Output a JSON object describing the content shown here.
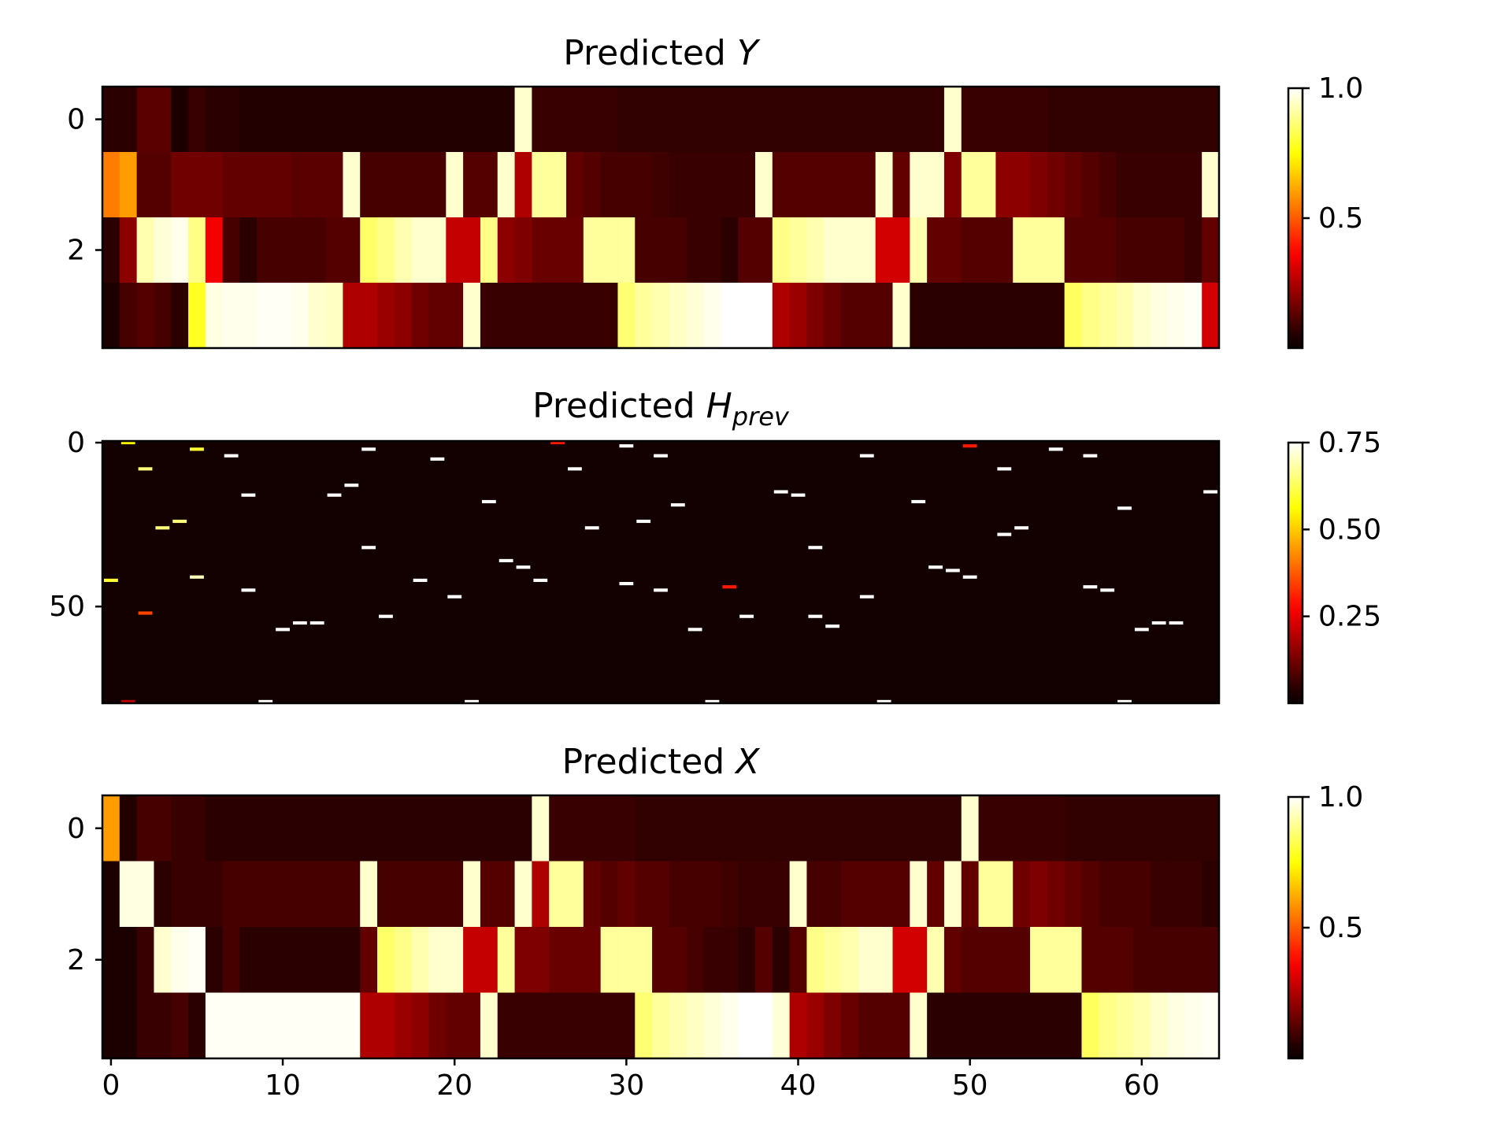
{
  "chart_data": [
    {
      "type": "heatmap",
      "title_main": "Predicted ",
      "title_var": "Y",
      "title_sub": "",
      "n_rows": 4,
      "n_cols": 65,
      "colormap": "hot",
      "vmax": 1.0,
      "yticks": [
        0,
        2
      ],
      "xticks": [],
      "colorbar_ticks": [
        "1.0",
        "0.5"
      ],
      "colorbar_tick_values": [
        1.0,
        0.5
      ],
      "rows": [
        [
          0.06,
          0.06,
          0.13,
          0.13,
          0.04,
          0.08,
          0.06,
          0.06,
          0.05,
          0.05,
          0.05,
          0.05,
          0.05,
          0.05,
          0.05,
          0.05,
          0.05,
          0.05,
          0.05,
          0.05,
          0.05,
          0.05,
          0.05,
          0.05,
          0.95,
          0.08,
          0.08,
          0.08,
          0.08,
          0.08,
          0.07,
          0.07,
          0.07,
          0.07,
          0.07,
          0.07,
          0.07,
          0.07,
          0.07,
          0.07,
          0.07,
          0.07,
          0.07,
          0.07,
          0.07,
          0.07,
          0.07,
          0.07,
          0.07,
          0.95,
          0.08,
          0.08,
          0.08,
          0.08,
          0.08,
          0.07,
          0.07,
          0.07,
          0.07,
          0.07,
          0.07,
          0.07,
          0.07,
          0.07,
          0.07
        ],
        [
          0.55,
          0.6,
          0.12,
          0.12,
          0.16,
          0.16,
          0.16,
          0.14,
          0.14,
          0.14,
          0.14,
          0.13,
          0.13,
          0.13,
          0.95,
          0.1,
          0.1,
          0.1,
          0.1,
          0.1,
          0.95,
          0.12,
          0.12,
          0.95,
          0.25,
          0.9,
          0.9,
          0.14,
          0.12,
          0.1,
          0.1,
          0.1,
          0.09,
          0.08,
          0.08,
          0.08,
          0.08,
          0.08,
          0.95,
          0.12,
          0.12,
          0.12,
          0.12,
          0.12,
          0.12,
          0.95,
          0.14,
          0.95,
          0.95,
          0.18,
          0.9,
          0.9,
          0.2,
          0.2,
          0.18,
          0.16,
          0.14,
          0.12,
          0.1,
          0.08,
          0.08,
          0.08,
          0.08,
          0.08,
          0.95
        ],
        [
          0.06,
          0.2,
          0.92,
          0.96,
          0.98,
          0.88,
          0.35,
          0.1,
          0.06,
          0.1,
          0.1,
          0.1,
          0.1,
          0.12,
          0.12,
          0.85,
          0.88,
          0.92,
          0.95,
          0.95,
          0.28,
          0.28,
          0.88,
          0.2,
          0.18,
          0.15,
          0.15,
          0.15,
          0.9,
          0.9,
          0.9,
          0.1,
          0.1,
          0.1,
          0.08,
          0.08,
          0.06,
          0.12,
          0.12,
          0.88,
          0.9,
          0.92,
          0.95,
          0.95,
          0.95,
          0.3,
          0.3,
          0.92,
          0.14,
          0.14,
          0.12,
          0.12,
          0.12,
          0.9,
          0.9,
          0.9,
          0.12,
          0.12,
          0.12,
          0.1,
          0.1,
          0.1,
          0.1,
          0.08,
          0.14
        ],
        [
          0.04,
          0.1,
          0.12,
          0.1,
          0.06,
          0.78,
          0.97,
          0.98,
          0.98,
          0.99,
          0.99,
          0.98,
          0.95,
          0.94,
          0.25,
          0.25,
          0.22,
          0.2,
          0.16,
          0.14,
          0.14,
          0.95,
          0.08,
          0.08,
          0.08,
          0.08,
          0.08,
          0.08,
          0.08,
          0.08,
          0.86,
          0.9,
          0.92,
          0.94,
          0.96,
          0.98,
          1.0,
          1.0,
          1.0,
          0.25,
          0.22,
          0.18,
          0.15,
          0.12,
          0.12,
          0.12,
          0.95,
          0.06,
          0.06,
          0.06,
          0.06,
          0.06,
          0.06,
          0.06,
          0.06,
          0.06,
          0.84,
          0.88,
          0.9,
          0.92,
          0.95,
          0.97,
          0.98,
          0.99,
          0.3
        ]
      ]
    },
    {
      "type": "heatmap",
      "title_main": "Predicted ",
      "title_var": "H",
      "title_sub": "prev",
      "n_rows": 80,
      "n_cols": 65,
      "colormap": "hot",
      "vmax": 0.75,
      "background_value": 0.02,
      "yticks": [
        0,
        50
      ],
      "xticks": [],
      "colorbar_ticks": [
        "0.75",
        "0.50",
        "0.25"
      ],
      "colorbar_tick_values": [
        0.75,
        0.5,
        0.25
      ],
      "bright_cells": [
        [
          0,
          1,
          0.55
        ],
        [
          2,
          5,
          0.6
        ],
        [
          4,
          7,
          0.75
        ],
        [
          5,
          19,
          0.75
        ],
        [
          1,
          30,
          0.75
        ],
        [
          4,
          32,
          0.75
        ],
        [
          2,
          15,
          0.75
        ],
        [
          0,
          26,
          0.3
        ],
        [
          8,
          2,
          0.65
        ],
        [
          8,
          27,
          0.75
        ],
        [
          13,
          14,
          0.75
        ],
        [
          16,
          8,
          0.75
        ],
        [
          16,
          13,
          0.75
        ],
        [
          18,
          22,
          0.75
        ],
        [
          19,
          33,
          0.75
        ],
        [
          15,
          39,
          0.75
        ],
        [
          16,
          40,
          0.75
        ],
        [
          18,
          47,
          0.75
        ],
        [
          4,
          44,
          0.75
        ],
        [
          1,
          50,
          0.3
        ],
        [
          8,
          52,
          0.75
        ],
        [
          2,
          55,
          0.75
        ],
        [
          4,
          57,
          0.75
        ],
        [
          15,
          64,
          0.75
        ],
        [
          20,
          59,
          0.75
        ],
        [
          24,
          4,
          0.65
        ],
        [
          26,
          3,
          0.65
        ],
        [
          26,
          28,
          0.75
        ],
        [
          24,
          31,
          0.75
        ],
        [
          32,
          15,
          0.75
        ],
        [
          36,
          23,
          0.75
        ],
        [
          38,
          24,
          0.75
        ],
        [
          32,
          41,
          0.75
        ],
        [
          38,
          48,
          0.75
        ],
        [
          39,
          49,
          0.75
        ],
        [
          26,
          53,
          0.75
        ],
        [
          28,
          52,
          0.75
        ],
        [
          41,
          5,
          0.7
        ],
        [
          42,
          0,
          0.6
        ],
        [
          42,
          18,
          0.75
        ],
        [
          42,
          25,
          0.75
        ],
        [
          41,
          50,
          0.75
        ],
        [
          43,
          30,
          0.75
        ],
        [
          45,
          8,
          0.75
        ],
        [
          45,
          32,
          0.75
        ],
        [
          45,
          58,
          0.75
        ],
        [
          44,
          57,
          0.75
        ],
        [
          47,
          20,
          0.75
        ],
        [
          47,
          44,
          0.75
        ],
        [
          44,
          36,
          0.3
        ],
        [
          53,
          16,
          0.75
        ],
        [
          53,
          37,
          0.75
        ],
        [
          53,
          41,
          0.75
        ],
        [
          55,
          11,
          0.75
        ],
        [
          55,
          12,
          0.75
        ],
        [
          56,
          42,
          0.75
        ],
        [
          55,
          61,
          0.75
        ],
        [
          55,
          62,
          0.75
        ],
        [
          57,
          10,
          0.75
        ],
        [
          57,
          34,
          0.75
        ],
        [
          57,
          60,
          0.75
        ],
        [
          79,
          9,
          0.75
        ],
        [
          79,
          21,
          0.75
        ],
        [
          79,
          35,
          0.75
        ],
        [
          79,
          45,
          0.75
        ],
        [
          79,
          59,
          0.75
        ],
        [
          79,
          1,
          0.2
        ],
        [
          52,
          2,
          0.35
        ]
      ]
    },
    {
      "type": "heatmap",
      "title_main": "Predicted ",
      "title_var": "X",
      "title_sub": "",
      "n_rows": 4,
      "n_cols": 65,
      "colormap": "hot",
      "vmax": 1.0,
      "yticks": [
        0,
        2
      ],
      "xticks": [
        0,
        10,
        20,
        30,
        40,
        50,
        60
      ],
      "colorbar_ticks": [
        "1.0",
        "0.5"
      ],
      "colorbar_tick_values": [
        1.0,
        0.5
      ],
      "rows": [
        [
          0.6,
          0.05,
          0.1,
          0.1,
          0.08,
          0.08,
          0.06,
          0.06,
          0.06,
          0.06,
          0.06,
          0.06,
          0.06,
          0.06,
          0.06,
          0.06,
          0.06,
          0.06,
          0.06,
          0.06,
          0.06,
          0.06,
          0.06,
          0.06,
          0.06,
          0.95,
          0.08,
          0.08,
          0.08,
          0.08,
          0.08,
          0.07,
          0.07,
          0.07,
          0.07,
          0.07,
          0.07,
          0.07,
          0.07,
          0.07,
          0.07,
          0.07,
          0.07,
          0.07,
          0.07,
          0.07,
          0.07,
          0.07,
          0.07,
          0.07,
          0.95,
          0.08,
          0.08,
          0.08,
          0.08,
          0.08,
          0.07,
          0.07,
          0.07,
          0.07,
          0.07,
          0.07,
          0.07,
          0.07,
          0.07
        ],
        [
          0.04,
          0.97,
          0.97,
          0.06,
          0.08,
          0.08,
          0.08,
          0.1,
          0.1,
          0.1,
          0.1,
          0.1,
          0.1,
          0.1,
          0.1,
          0.95,
          0.1,
          0.1,
          0.1,
          0.1,
          0.1,
          0.95,
          0.12,
          0.12,
          0.95,
          0.25,
          0.9,
          0.9,
          0.14,
          0.12,
          0.14,
          0.12,
          0.12,
          0.1,
          0.1,
          0.1,
          0.09,
          0.08,
          0.08,
          0.08,
          0.95,
          0.1,
          0.1,
          0.12,
          0.12,
          0.12,
          0.12,
          0.95,
          0.14,
          0.95,
          0.14,
          0.9,
          0.9,
          0.16,
          0.18,
          0.16,
          0.14,
          0.12,
          0.1,
          0.1,
          0.1,
          0.08,
          0.08,
          0.08,
          0.06
        ],
        [
          0.04,
          0.04,
          0.08,
          0.95,
          0.98,
          0.99,
          0.06,
          0.1,
          0.06,
          0.06,
          0.06,
          0.06,
          0.06,
          0.06,
          0.06,
          0.14,
          0.85,
          0.88,
          0.92,
          0.95,
          0.95,
          0.28,
          0.28,
          0.9,
          0.18,
          0.18,
          0.15,
          0.15,
          0.15,
          0.9,
          0.9,
          0.9,
          0.12,
          0.12,
          0.1,
          0.08,
          0.08,
          0.06,
          0.12,
          0.06,
          0.12,
          0.88,
          0.9,
          0.92,
          0.95,
          0.95,
          0.3,
          0.3,
          0.92,
          0.14,
          0.12,
          0.12,
          0.12,
          0.12,
          0.9,
          0.9,
          0.9,
          0.12,
          0.12,
          0.12,
          0.1,
          0.1,
          0.1,
          0.1,
          0.1
        ],
        [
          0.04,
          0.04,
          0.08,
          0.08,
          0.1,
          0.06,
          0.99,
          0.99,
          0.99,
          0.99,
          0.99,
          0.99,
          0.99,
          0.99,
          0.99,
          0.25,
          0.25,
          0.22,
          0.2,
          0.16,
          0.14,
          0.14,
          0.95,
          0.08,
          0.08,
          0.08,
          0.08,
          0.08,
          0.08,
          0.08,
          0.08,
          0.86,
          0.9,
          0.92,
          0.94,
          0.96,
          0.98,
          1.0,
          1.0,
          0.96,
          0.25,
          0.22,
          0.18,
          0.15,
          0.12,
          0.12,
          0.12,
          0.95,
          0.06,
          0.06,
          0.06,
          0.06,
          0.06,
          0.06,
          0.06,
          0.06,
          0.06,
          0.84,
          0.88,
          0.9,
          0.92,
          0.95,
          0.97,
          0.98,
          0.99
        ]
      ]
    }
  ]
}
